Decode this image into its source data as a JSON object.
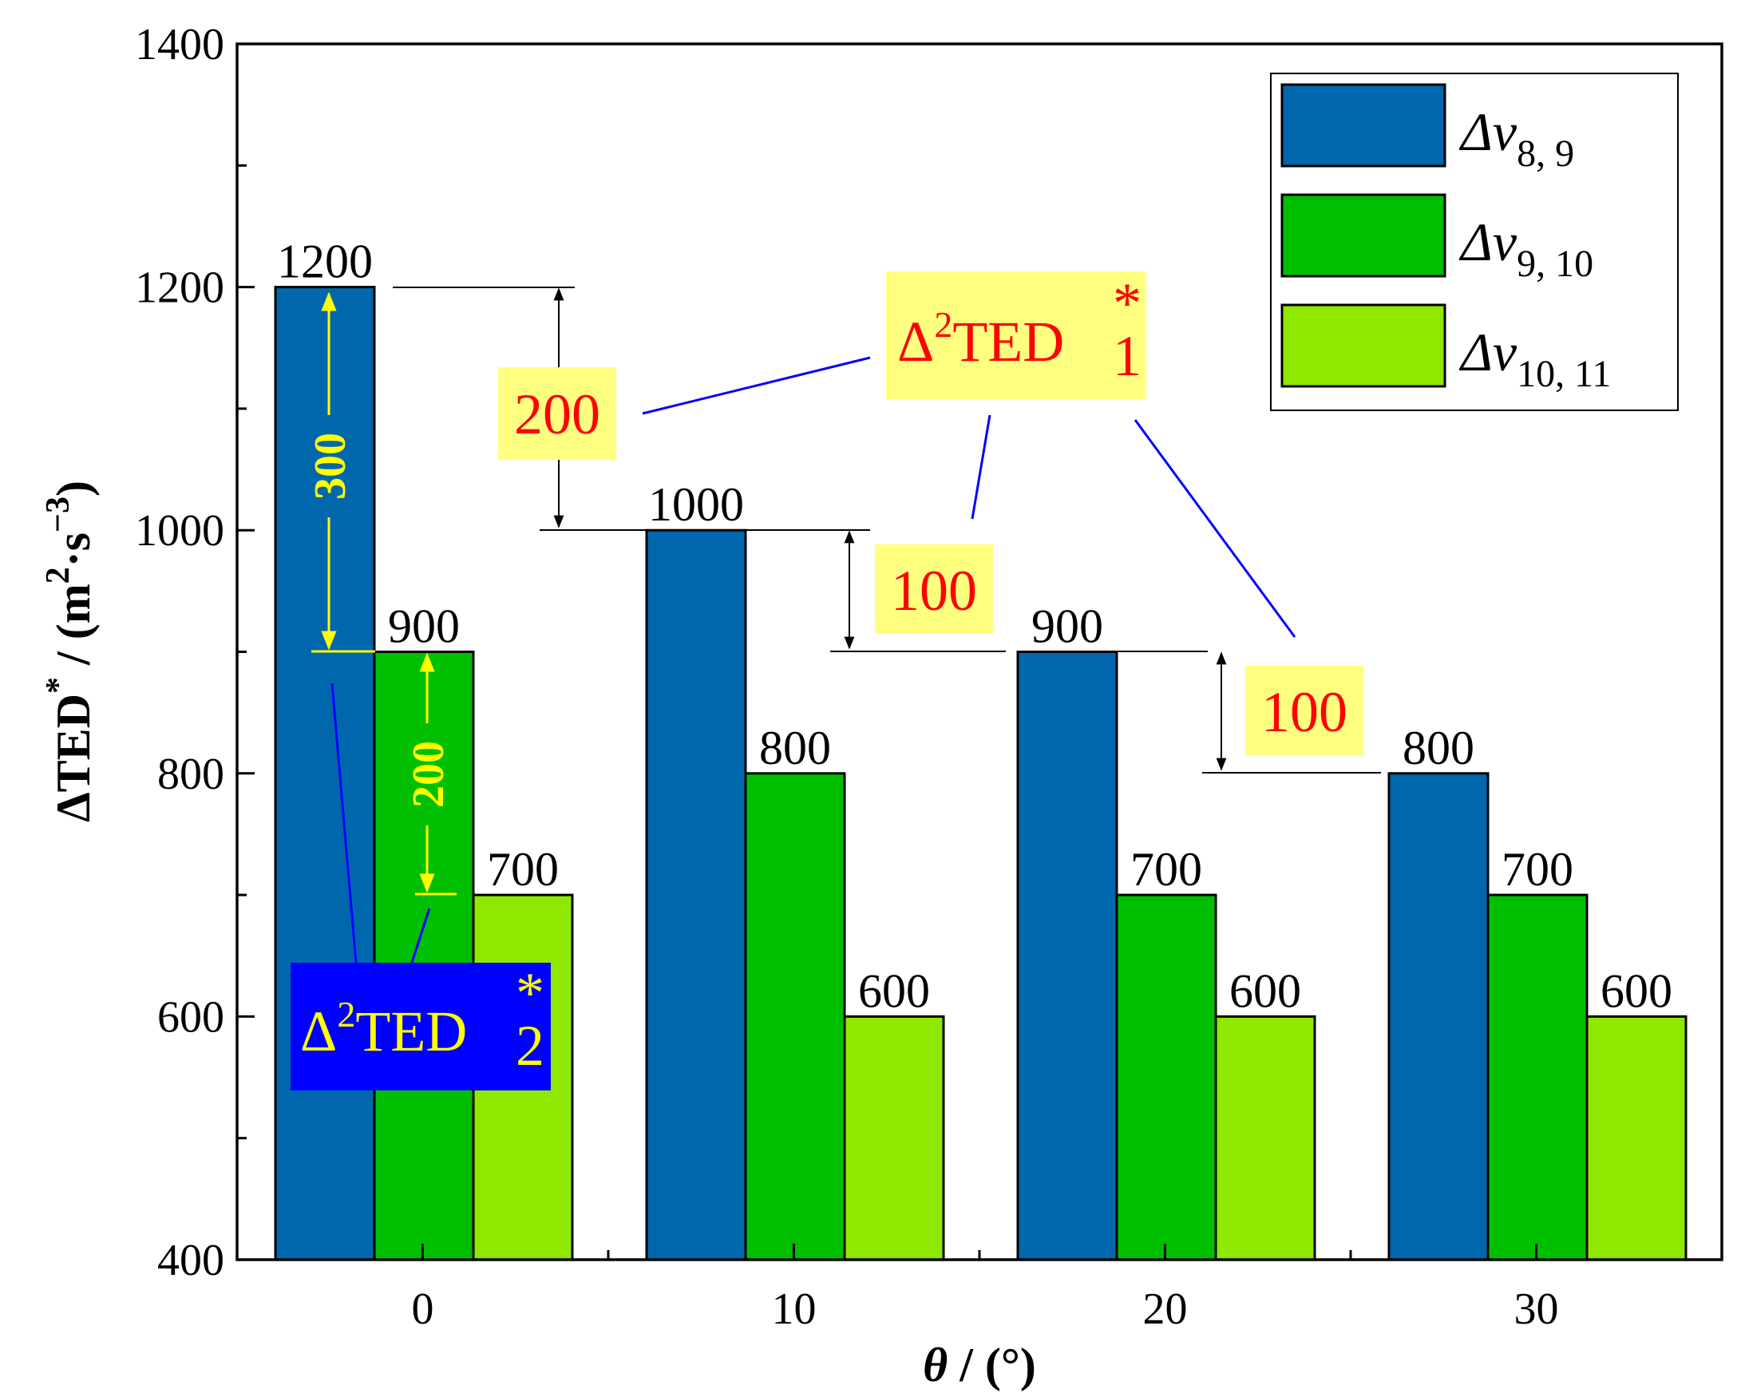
{
  "chart_data": {
    "type": "bar",
    "categories": [
      "0",
      "10",
      "20",
      "30"
    ],
    "series": [
      {
        "name": "Δv8, 9",
        "legend_main": "Δv",
        "legend_sub": "8, 9",
        "color": "#0067AC",
        "values": [
          1200,
          1000,
          900,
          800
        ]
      },
      {
        "name": "Δv9, 10",
        "legend_main": "Δv",
        "legend_sub": "9, 10",
        "color": "#00BF00",
        "values": [
          900,
          800,
          700,
          700
        ]
      },
      {
        "name": "Δv10, 11",
        "legend_main": "Δv",
        "legend_sub": "10, 11",
        "color": "#8EE800",
        "values": [
          700,
          600,
          600,
          600
        ]
      }
    ],
    "bar_labels": [
      [
        "1200",
        "1000",
        "900",
        "800"
      ],
      [
        "900",
        "800",
        "700",
        "700"
      ],
      [
        "700",
        "600",
        "600",
        "600"
      ]
    ],
    "ylim": [
      400,
      1400
    ],
    "yticks": [
      "400",
      "600",
      "800",
      "1000",
      "1200",
      "1400"
    ],
    "ytick_values": [
      400,
      600,
      800,
      1000,
      1200,
      1400
    ],
    "xlabel_symbol": "θ",
    "xlabel_unit": " / (°)",
    "ylabel_main": "ΔTED",
    "ylabel_star": "*",
    "ylabel_unit_a": " / (m",
    "ylabel_sup2": "2",
    "ylabel_unit_b": "·s",
    "ylabel_supm3": "−3",
    "ylabel_close": ")",
    "legend_position": "top-right",
    "annotations": {
      "d2ted1": {
        "delta": "Δ",
        "sup": "2",
        "base": "TED",
        "star": "*",
        "sub": "1",
        "color": "#ff0000",
        "box_color": "#ffff80"
      },
      "d2ted2": {
        "delta": "Δ",
        "sup": "2",
        "base": "TED",
        "star": "*",
        "sub": "2",
        "color": "#ffff00",
        "box_color": "#0000ff"
      },
      "diff_0_10": "200",
      "diff_10_20": "100",
      "diff_20_30": "100",
      "diff_intra_a": "300",
      "diff_intra_b": "200"
    }
  }
}
